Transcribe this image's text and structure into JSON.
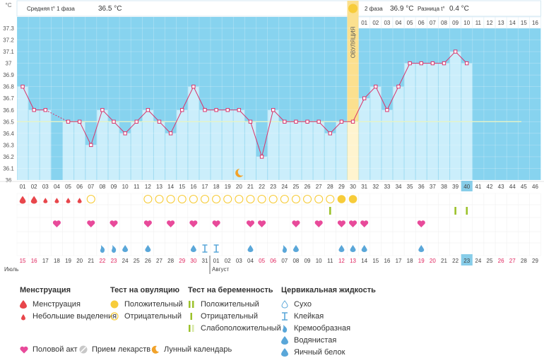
{
  "header": {
    "unit": "°C",
    "phase1_label": "Средняя t° 1 фаза",
    "phase1_value": "36.5 °C",
    "phase2_label": "2 фаза",
    "phase2_value": "36.9 °C",
    "diff_label": "Разница t°",
    "diff_value": "0.4 °C",
    "ovulation_label": "ОВУЛЯЦИЯ"
  },
  "colors": {
    "accent_line": "#d9346b",
    "high_band": "#87d3ef",
    "low_area": "#cbeefb",
    "ovulation": "#fbe08f",
    "menses_red": "#e8464b",
    "heart_pink": "#e84a9a",
    "test_green": "#9cc22b",
    "cm_blue": "#5aa7d9",
    "moon_orange": "#f1a22a",
    "ov_test_yellow": "#f7cc3a"
  },
  "chart_data": {
    "type": "line",
    "ylabel": "°C",
    "ylim": [
      36.0,
      37.3
    ],
    "y_ticks": [
      "37.3",
      "37.2",
      "37.1",
      "37",
      "36.9",
      "36.8",
      "36.7",
      "36.6",
      "36.5",
      "36.4",
      "36.3",
      "36.2",
      "36.1",
      "36"
    ],
    "cycle_days": [
      "01",
      "02",
      "03",
      "04",
      "05",
      "06",
      "07",
      "08",
      "09",
      "10",
      "11",
      "12",
      "13",
      "14",
      "15",
      "16",
      "17",
      "18",
      "19",
      "20",
      "21",
      "22",
      "23",
      "24",
      "25",
      "26",
      "27",
      "28",
      "29",
      "30",
      "31",
      "32",
      "33",
      "34",
      "35",
      "36",
      "37",
      "38",
      "39",
      "40",
      "41",
      "42",
      "43",
      "44",
      "45",
      "46"
    ],
    "highlight_cycle_day": "40",
    "ovulation_cycle_day": 30,
    "temperatures": [
      36.8,
      36.6,
      36.6,
      null,
      36.5,
      36.5,
      36.3,
      36.6,
      36.5,
      36.4,
      36.5,
      36.6,
      36.5,
      36.4,
      36.6,
      36.8,
      36.6,
      36.6,
      36.6,
      36.6,
      36.5,
      36.2,
      36.6,
      36.5,
      36.5,
      36.5,
      36.5,
      36.4,
      36.5,
      36.5,
      36.7,
      36.8,
      36.6,
      36.8,
      37.0,
      37.0,
      37.0,
      37.0,
      37.1,
      37.0
    ],
    "coverline": 36.5,
    "post_ov_day_labels": [
      "01",
      "02",
      "03",
      "04",
      "05",
      "06",
      "07",
      "08",
      "09",
      "10",
      "11",
      "12",
      "13",
      "14",
      "15",
      "16"
    ],
    "dates": [
      "15",
      "16",
      "17",
      "18",
      "19",
      "20",
      "21",
      "22",
      "23",
      "24",
      "25",
      "26",
      "27",
      "28",
      "29",
      "30",
      "31",
      "01",
      "02",
      "03",
      "04",
      "05",
      "06",
      "07",
      "08",
      "09",
      "10",
      "11",
      "12",
      "13",
      "14",
      "15",
      "16",
      "17",
      "18",
      "19",
      "20",
      "21",
      "22",
      "23",
      "24",
      "25",
      "26",
      "27",
      "28",
      "29"
    ],
    "red_dates_idx": [
      0,
      1,
      7,
      8,
      14,
      15,
      21,
      22,
      28,
      29,
      35,
      36,
      42,
      43
    ],
    "highlight_date_idx": 39,
    "months": [
      {
        "label": "Июль",
        "start": 0
      },
      {
        "label": "Август",
        "start": 17
      }
    ],
    "markers": {
      "menses_big": [
        0,
        1
      ],
      "menses_small": [
        2,
        3,
        4,
        5
      ],
      "ov_test_neg": [
        6,
        11,
        12,
        13,
        14,
        15,
        16,
        17,
        18,
        19,
        20,
        21,
        22,
        23,
        24,
        25,
        26,
        27
      ],
      "ov_test_pos": [
        28,
        29
      ],
      "preg_neg": [
        27,
        38,
        39
      ],
      "sex": [
        3,
        6,
        8,
        11,
        13,
        15,
        17,
        20,
        21,
        24,
        26,
        28,
        29,
        30,
        35
      ],
      "cm_creamy": [
        7,
        8
      ],
      "cm_watery": [
        9,
        11,
        15,
        20,
        24,
        28,
        29,
        30,
        35
      ],
      "cm_sticky": [
        16,
        17
      ],
      "cm_creamy2": [
        23
      ],
      "moon": [
        19
      ]
    }
  },
  "legend": {
    "menstruation_title": "Менструация",
    "menstruation": "Менструация",
    "spotting": "Небольшие выделения",
    "ovtest_title": "Тест на овуляцию",
    "ovtest_pos": "Положительный",
    "ovtest_neg": "Отрицательный",
    "pregtest_title": "Тест на беременность",
    "pregtest_pos": "Положительный",
    "pregtest_neg": "Отрицательный",
    "pregtest_weak": "Слабоположительный",
    "cm_title": "Цервикальная жидкость",
    "cm_dry": "Сухо",
    "cm_sticky": "Клейкая",
    "cm_creamy": "Кремообразная",
    "cm_watery": "Водянистая",
    "cm_eggwhite": "Яичный белок",
    "sex": "Половой акт",
    "meds": "Прием лекарств",
    "lunar": "Лунный календарь"
  }
}
